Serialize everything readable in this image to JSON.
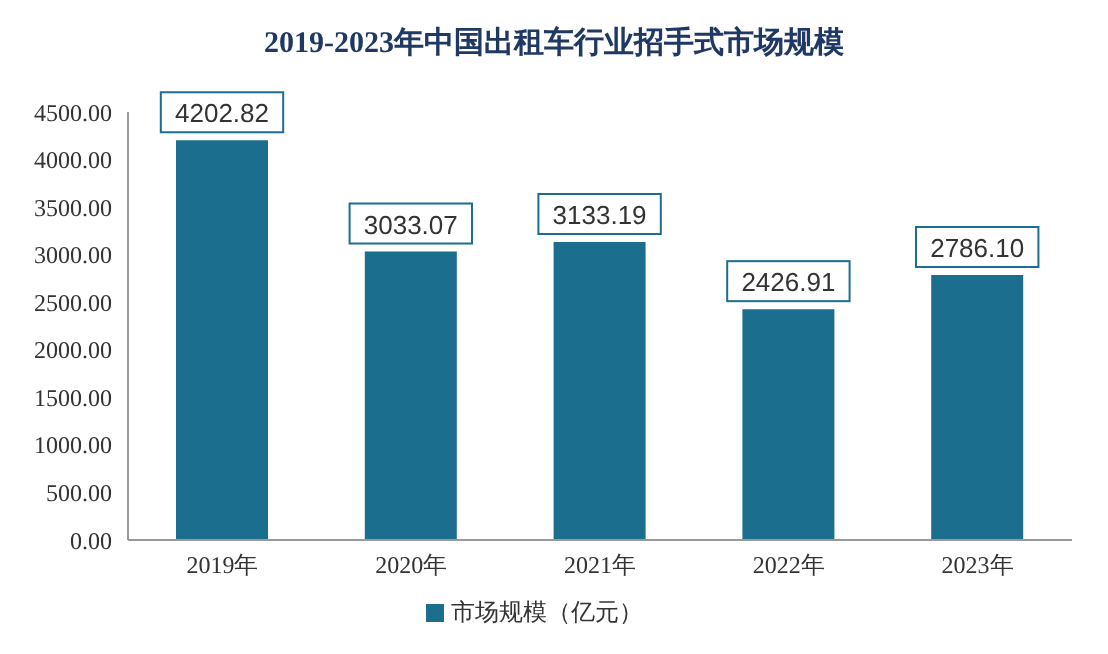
{
  "chart_data": {
    "type": "bar",
    "title": "2019-2023年中国出租车行业招手式市场规模",
    "categories": [
      "2019年",
      "2020年",
      "2021年",
      "2022年",
      "2023年"
    ],
    "series": [
      {
        "name": "市场规模（亿元）",
        "color": "#1b6e8e",
        "values": [
          4202.82,
          3033.07,
          3133.19,
          2426.91,
          2786.1
        ],
        "value_labels": [
          "4202.82",
          "3033.07",
          "3133.19",
          "2426.91",
          "2786.10"
        ]
      }
    ],
    "ylim": [
      0,
      4500
    ],
    "yticks": [
      {
        "value": 0,
        "label": "0.00"
      },
      {
        "value": 500,
        "label": "500.00"
      },
      {
        "value": 1000,
        "label": "1000.00"
      },
      {
        "value": 1500,
        "label": "1500.00"
      },
      {
        "value": 2000,
        "label": "2000.00"
      },
      {
        "value": 2500,
        "label": "2500.00"
      },
      {
        "value": 3000,
        "label": "3000.00"
      },
      {
        "value": 3500,
        "label": "3500.00"
      },
      {
        "value": 4000,
        "label": "4000.00"
      },
      {
        "value": 4500,
        "label": "4500.00"
      }
    ],
    "grid": false,
    "legend": "bottom"
  }
}
